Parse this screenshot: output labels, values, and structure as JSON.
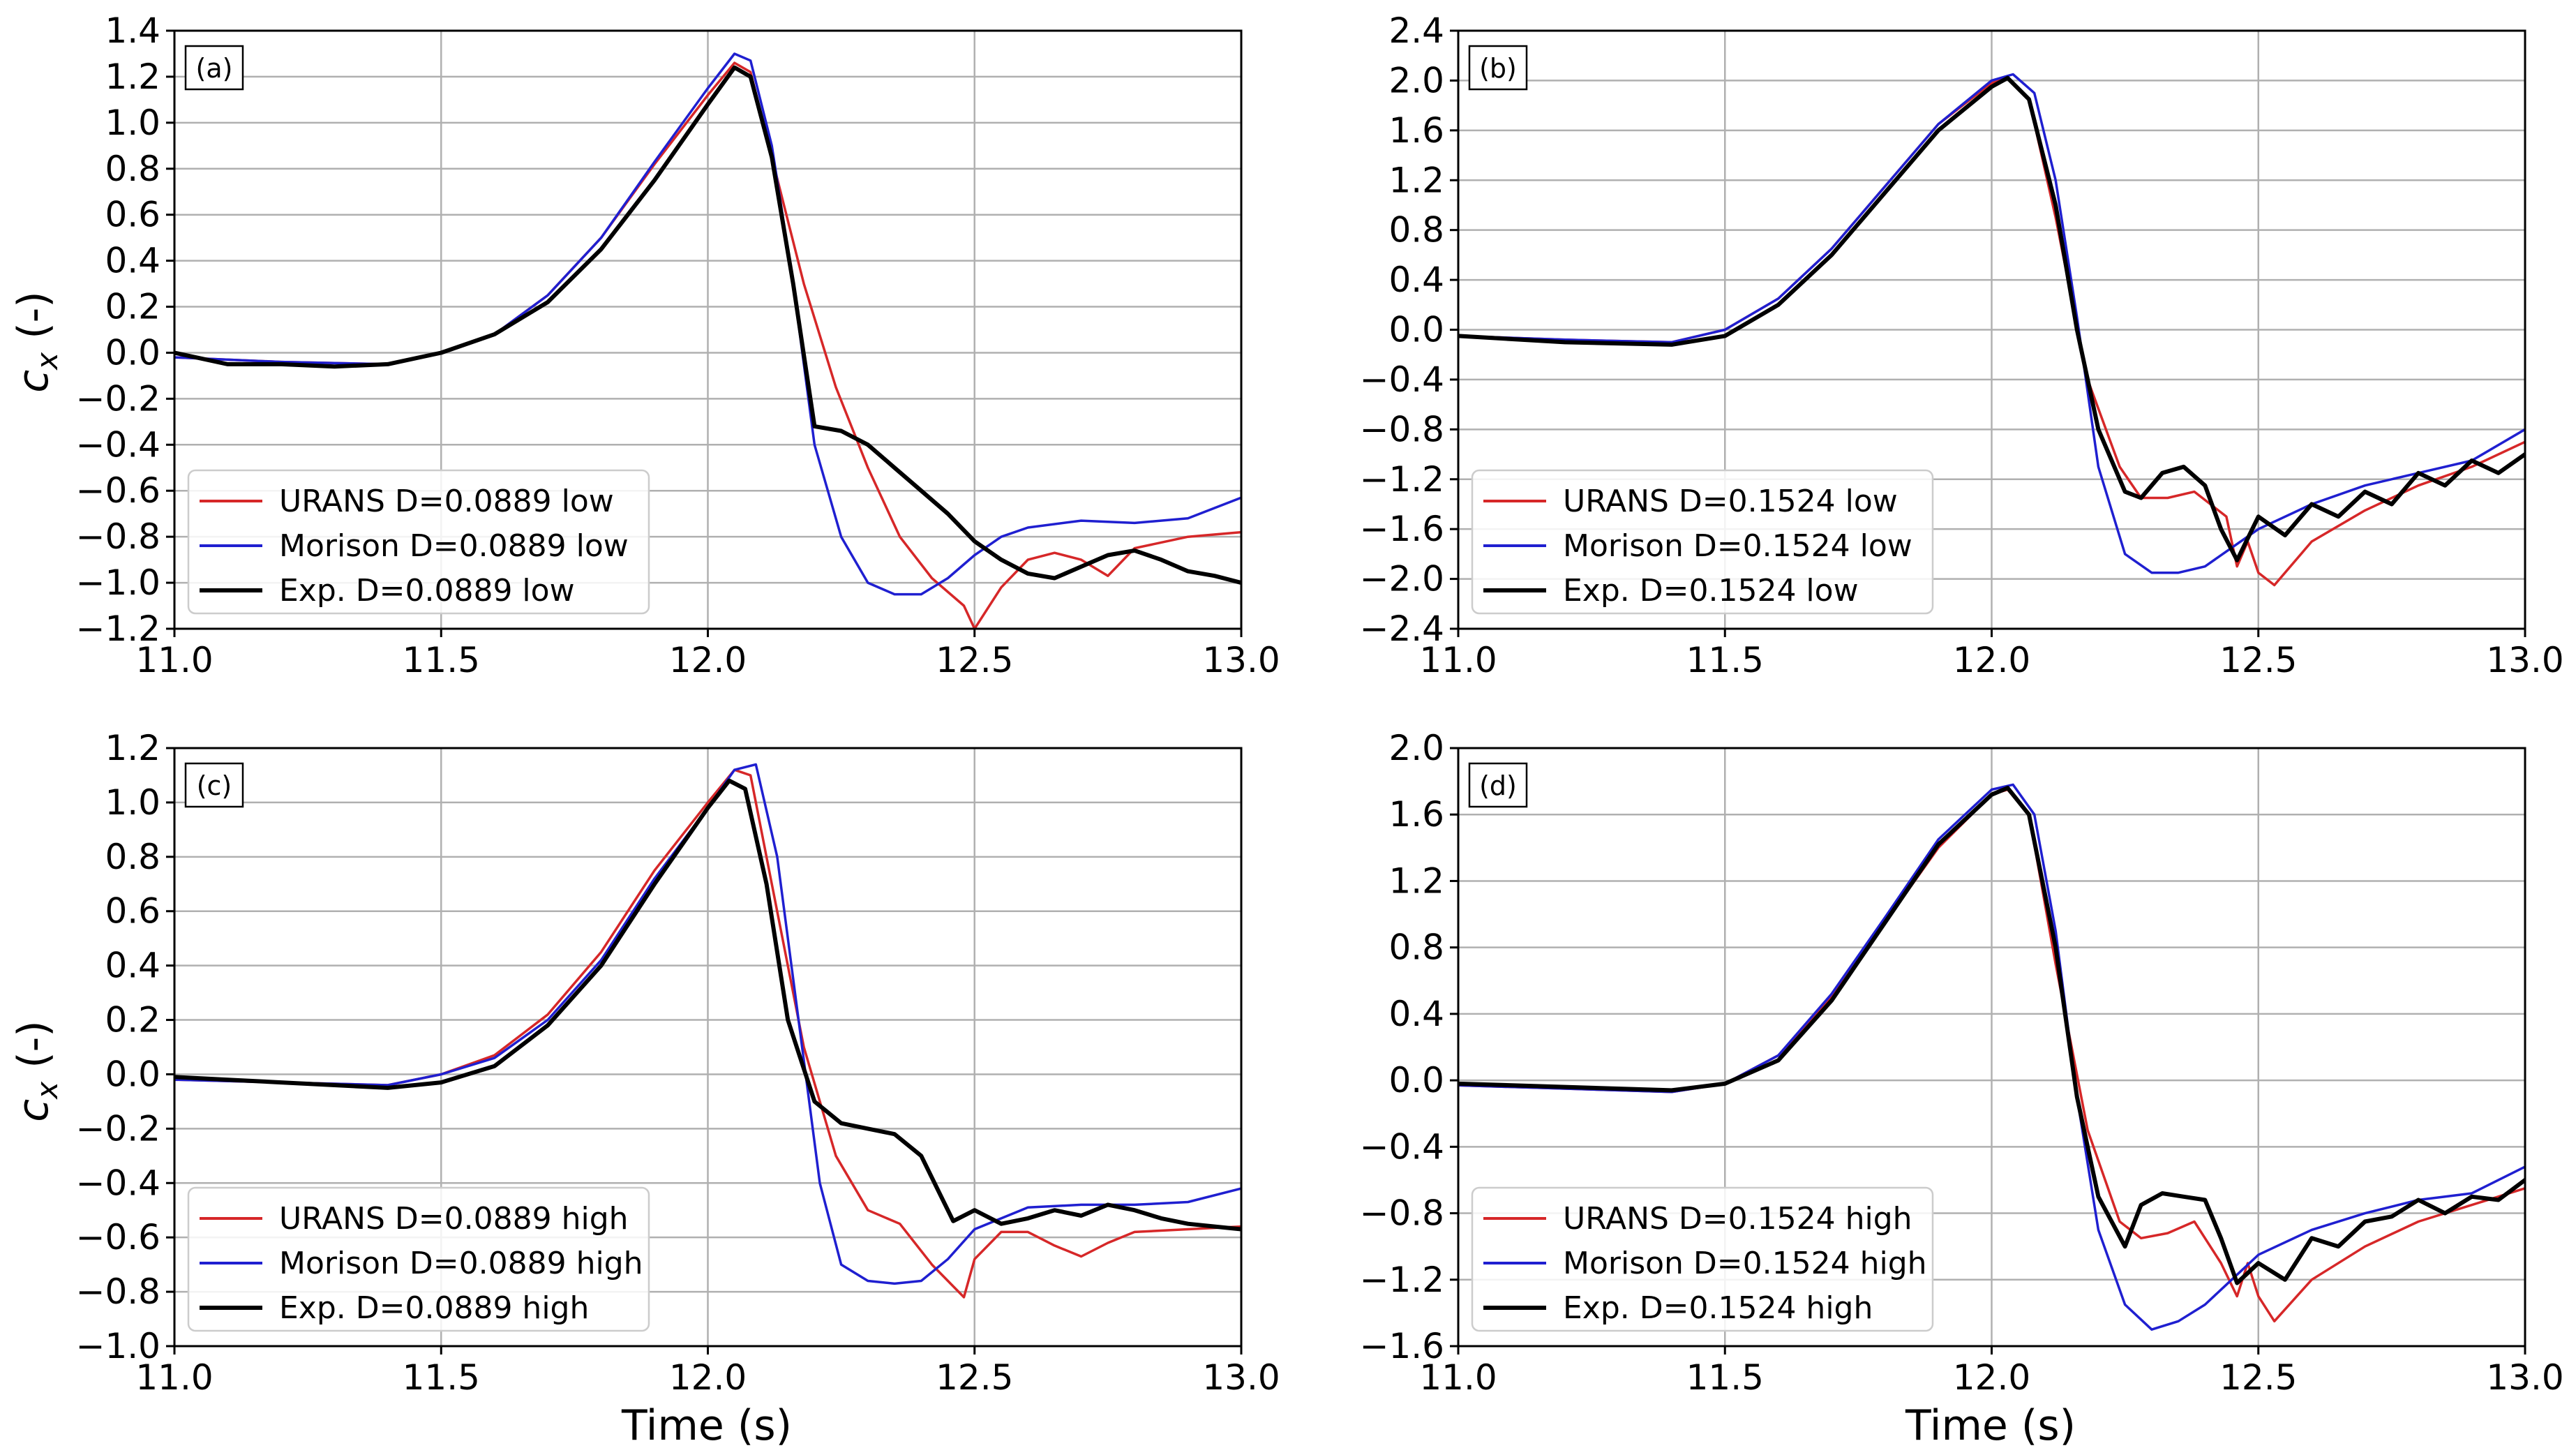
{
  "colors": {
    "urans": "#d62728",
    "morison": "#1f1fd0",
    "exp": "#000000"
  },
  "x_axis_title": "Time (s)",
  "y_axis_title_base": "c",
  "y_axis_title_sub": "x",
  "y_axis_title_unit": "(-)",
  "chart_data": [
    {
      "type": "line",
      "panel_label": "(a)",
      "xlim": [
        11.0,
        13.0
      ],
      "ylim": [
        -1.2,
        1.4
      ],
      "xticks": [
        "11.0",
        "11.5",
        "12.0",
        "12.5",
        "13.0"
      ],
      "yticks": [
        "1.4",
        "1.2",
        "1.0",
        "0.8",
        "0.6",
        "0.4",
        "0.2",
        "0.0",
        "−0.2",
        "−0.4",
        "−0.6",
        "−0.8",
        "−1.0",
        "−1.2"
      ],
      "ytick_values": [
        1.4,
        1.2,
        1.0,
        0.8,
        0.6,
        0.4,
        0.2,
        0.0,
        -0.2,
        -0.4,
        -0.6,
        -0.8,
        -1.0,
        -1.2
      ],
      "xtick_values": [
        11.0,
        11.5,
        12.0,
        12.5,
        13.0
      ],
      "legend_position": "lower-left",
      "series": [
        {
          "name": "URANS D=0.0889 low",
          "color": "#d62728",
          "x": [
            11.0,
            11.2,
            11.4,
            11.5,
            11.6,
            11.7,
            11.8,
            11.9,
            12.0,
            12.05,
            12.08,
            12.12,
            12.18,
            12.24,
            12.3,
            12.36,
            12.42,
            12.48,
            12.5,
            12.55,
            12.6,
            12.65,
            12.7,
            12.75,
            12.8,
            12.9,
            13.0
          ],
          "y": [
            -0.02,
            -0.04,
            -0.05,
            0.0,
            0.08,
            0.25,
            0.5,
            0.82,
            1.12,
            1.26,
            1.22,
            0.85,
            0.3,
            -0.15,
            -0.5,
            -0.8,
            -0.98,
            -1.1,
            -1.2,
            -1.02,
            -0.9,
            -0.87,
            -0.9,
            -0.97,
            -0.85,
            -0.8,
            -0.78
          ]
        },
        {
          "name": "Morison D=0.0889 low",
          "color": "#1f1fd0",
          "x": [
            11.0,
            11.2,
            11.4,
            11.5,
            11.6,
            11.7,
            11.8,
            11.9,
            12.0,
            12.05,
            12.08,
            12.12,
            12.16,
            12.2,
            12.25,
            12.3,
            12.35,
            12.4,
            12.45,
            12.5,
            12.55,
            12.6,
            12.7,
            12.8,
            12.9,
            13.0
          ],
          "y": [
            -0.02,
            -0.04,
            -0.05,
            0.0,
            0.08,
            0.25,
            0.5,
            0.83,
            1.15,
            1.3,
            1.27,
            0.9,
            0.3,
            -0.4,
            -0.8,
            -1.0,
            -1.05,
            -1.05,
            -0.98,
            -0.88,
            -0.8,
            -0.76,
            -0.73,
            -0.74,
            -0.72,
            -0.63
          ]
        },
        {
          "name": "Exp. D=0.0889 low",
          "color": "#000000",
          "x": [
            11.0,
            11.1,
            11.2,
            11.3,
            11.4,
            11.5,
            11.6,
            11.7,
            11.8,
            11.9,
            12.0,
            12.05,
            12.08,
            12.12,
            12.16,
            12.2,
            12.25,
            12.3,
            12.35,
            12.4,
            12.45,
            12.5,
            12.55,
            12.6,
            12.65,
            12.7,
            12.75,
            12.8,
            12.85,
            12.9,
            12.95,
            13.0
          ],
          "y": [
            0.0,
            -0.05,
            -0.05,
            -0.06,
            -0.05,
            0.0,
            0.08,
            0.22,
            0.45,
            0.75,
            1.08,
            1.24,
            1.2,
            0.85,
            0.3,
            -0.32,
            -0.34,
            -0.4,
            -0.5,
            -0.6,
            -0.7,
            -0.82,
            -0.9,
            -0.96,
            -0.98,
            -0.93,
            -0.88,
            -0.86,
            -0.9,
            -0.95,
            -0.97,
            -1.0
          ]
        }
      ]
    },
    {
      "type": "line",
      "panel_label": "(b)",
      "xlim": [
        11.0,
        13.0
      ],
      "ylim": [
        -2.4,
        2.4
      ],
      "xticks": [
        "11.0",
        "11.5",
        "12.0",
        "12.5",
        "13.0"
      ],
      "yticks": [
        "2.4",
        "2.0",
        "1.6",
        "1.2",
        "0.8",
        "0.4",
        "0.0",
        "−0.4",
        "−0.8",
        "−1.2",
        "−1.6",
        "−2.0",
        "−2.4"
      ],
      "ytick_values": [
        2.4,
        2.0,
        1.6,
        1.2,
        0.8,
        0.4,
        0.0,
        -0.4,
        -0.8,
        -1.2,
        -1.6,
        -2.0,
        -2.4
      ],
      "xtick_values": [
        11.0,
        11.5,
        12.0,
        12.5,
        13.0
      ],
      "legend_position": "lower-left",
      "series": [
        {
          "name": "URANS D=0.1524 low",
          "color": "#d62728",
          "x": [
            11.0,
            11.2,
            11.4,
            11.5,
            11.6,
            11.7,
            11.8,
            11.9,
            12.0,
            12.03,
            12.07,
            12.12,
            12.18,
            12.24,
            12.28,
            12.33,
            12.38,
            12.44,
            12.46,
            12.48,
            12.5,
            12.53,
            12.6,
            12.7,
            12.8,
            12.9,
            13.0
          ],
          "y": [
            -0.05,
            -0.08,
            -0.1,
            0.0,
            0.25,
            0.65,
            1.15,
            1.65,
            1.98,
            2.02,
            1.85,
            0.9,
            -0.4,
            -1.1,
            -1.35,
            -1.35,
            -1.3,
            -1.5,
            -1.9,
            -1.7,
            -1.95,
            -2.05,
            -1.7,
            -1.45,
            -1.25,
            -1.1,
            -0.9
          ]
        },
        {
          "name": "Morison D=0.1524 low",
          "color": "#1f1fd0",
          "x": [
            11.0,
            11.2,
            11.4,
            11.5,
            11.6,
            11.7,
            11.8,
            11.9,
            12.0,
            12.04,
            12.08,
            12.12,
            12.16,
            12.2,
            12.25,
            12.3,
            12.35,
            12.4,
            12.45,
            12.5,
            12.6,
            12.7,
            12.8,
            12.9,
            13.0
          ],
          "y": [
            -0.05,
            -0.08,
            -0.1,
            0.0,
            0.25,
            0.65,
            1.15,
            1.65,
            2.0,
            2.05,
            1.9,
            1.2,
            0.1,
            -1.1,
            -1.8,
            -1.95,
            -1.95,
            -1.9,
            -1.75,
            -1.6,
            -1.4,
            -1.25,
            -1.15,
            -1.05,
            -0.8
          ]
        },
        {
          "name": "Exp. D=0.1524 low",
          "color": "#000000",
          "x": [
            11.0,
            11.2,
            11.4,
            11.5,
            11.6,
            11.7,
            11.8,
            11.9,
            12.0,
            12.03,
            12.07,
            12.12,
            12.16,
            12.2,
            12.25,
            12.28,
            12.32,
            12.36,
            12.4,
            12.43,
            12.46,
            12.5,
            12.55,
            12.6,
            12.65,
            12.7,
            12.75,
            12.8,
            12.85,
            12.9,
            12.95,
            13.0
          ],
          "y": [
            -0.05,
            -0.1,
            -0.12,
            -0.05,
            0.2,
            0.6,
            1.1,
            1.6,
            1.95,
            2.02,
            1.85,
            1.0,
            0.0,
            -0.8,
            -1.3,
            -1.35,
            -1.15,
            -1.1,
            -1.25,
            -1.6,
            -1.85,
            -1.5,
            -1.65,
            -1.4,
            -1.5,
            -1.3,
            -1.4,
            -1.15,
            -1.25,
            -1.05,
            -1.15,
            -1.0
          ]
        }
      ]
    },
    {
      "type": "line",
      "panel_label": "(c)",
      "xlim": [
        11.0,
        13.0
      ],
      "ylim": [
        -1.0,
        1.2
      ],
      "xticks": [
        "11.0",
        "11.5",
        "12.0",
        "12.5",
        "13.0"
      ],
      "yticks": [
        "1.2",
        "1.0",
        "0.8",
        "0.6",
        "0.4",
        "0.2",
        "0.0",
        "−0.2",
        "−0.4",
        "−0.6",
        "−0.8",
        "−1.0"
      ],
      "ytick_values": [
        1.2,
        1.0,
        0.8,
        0.6,
        0.4,
        0.2,
        0.0,
        -0.2,
        -0.4,
        -0.6,
        -0.8,
        -1.0
      ],
      "xtick_values": [
        11.0,
        11.5,
        12.0,
        12.5,
        13.0
      ],
      "legend_position": "lower-left",
      "series": [
        {
          "name": "URANS D=0.0889 high",
          "color": "#d62728",
          "x": [
            11.0,
            11.2,
            11.4,
            11.5,
            11.6,
            11.7,
            11.8,
            11.9,
            12.0,
            12.05,
            12.08,
            12.12,
            12.18,
            12.24,
            12.3,
            12.36,
            12.42,
            12.48,
            12.5,
            12.55,
            12.6,
            12.65,
            12.7,
            12.75,
            12.8,
            12.9,
            13.0
          ],
          "y": [
            -0.02,
            -0.03,
            -0.04,
            0.0,
            0.07,
            0.22,
            0.45,
            0.75,
            1.0,
            1.12,
            1.1,
            0.7,
            0.1,
            -0.3,
            -0.5,
            -0.55,
            -0.7,
            -0.82,
            -0.68,
            -0.58,
            -0.58,
            -0.63,
            -0.67,
            -0.62,
            -0.58,
            -0.57,
            -0.56
          ]
        },
        {
          "name": "Morison D=0.0889 high",
          "color": "#1f1fd0",
          "x": [
            11.0,
            11.2,
            11.4,
            11.5,
            11.6,
            11.7,
            11.8,
            11.9,
            12.0,
            12.05,
            12.09,
            12.13,
            12.17,
            12.21,
            12.25,
            12.3,
            12.35,
            12.4,
            12.45,
            12.5,
            12.6,
            12.7,
            12.8,
            12.9,
            13.0
          ],
          "y": [
            -0.02,
            -0.03,
            -0.04,
            0.0,
            0.06,
            0.2,
            0.42,
            0.72,
            0.98,
            1.12,
            1.14,
            0.8,
            0.2,
            -0.4,
            -0.7,
            -0.76,
            -0.77,
            -0.76,
            -0.68,
            -0.57,
            -0.49,
            -0.48,
            -0.48,
            -0.47,
            -0.42
          ]
        },
        {
          "name": "Exp. D=0.0889 high",
          "color": "#000000",
          "x": [
            11.0,
            11.1,
            11.2,
            11.3,
            11.4,
            11.5,
            11.6,
            11.7,
            11.8,
            11.9,
            12.0,
            12.04,
            12.07,
            12.11,
            12.15,
            12.2,
            12.25,
            12.3,
            12.35,
            12.4,
            12.43,
            12.46,
            12.5,
            12.55,
            12.6,
            12.65,
            12.7,
            12.75,
            12.8,
            12.85,
            12.9,
            12.95,
            13.0
          ],
          "y": [
            -0.01,
            -0.02,
            -0.03,
            -0.04,
            -0.05,
            -0.03,
            0.03,
            0.18,
            0.4,
            0.7,
            0.98,
            1.08,
            1.05,
            0.7,
            0.2,
            -0.1,
            -0.18,
            -0.2,
            -0.22,
            -0.3,
            -0.42,
            -0.54,
            -0.5,
            -0.55,
            -0.53,
            -0.5,
            -0.52,
            -0.48,
            -0.5,
            -0.53,
            -0.55,
            -0.56,
            -0.57
          ]
        }
      ]
    },
    {
      "type": "line",
      "panel_label": "(d)",
      "xlim": [
        11.0,
        13.0
      ],
      "ylim": [
        -1.6,
        2.0
      ],
      "xticks": [
        "11.0",
        "11.5",
        "12.0",
        "12.5",
        "13.0"
      ],
      "yticks": [
        "2.0",
        "1.6",
        "1.2",
        "0.8",
        "0.4",
        "0.0",
        "−0.4",
        "−0.8",
        "−1.2",
        "−1.6"
      ],
      "ytick_values": [
        2.0,
        1.6,
        1.2,
        0.8,
        0.4,
        0.0,
        -0.4,
        -0.8,
        -1.2,
        -1.6
      ],
      "xtick_values": [
        11.0,
        11.5,
        12.0,
        12.5,
        13.0
      ],
      "legend_position": "lower-left",
      "series": [
        {
          "name": "URANS D=0.1524 high",
          "color": "#d62728",
          "x": [
            11.0,
            11.2,
            11.4,
            11.5,
            11.6,
            11.7,
            11.8,
            11.9,
            12.0,
            12.03,
            12.07,
            12.12,
            12.18,
            12.24,
            12.28,
            12.33,
            12.38,
            12.43,
            12.46,
            12.48,
            12.5,
            12.53,
            12.6,
            12.7,
            12.8,
            12.9,
            13.0
          ],
          "y": [
            -0.03,
            -0.05,
            -0.07,
            -0.02,
            0.15,
            0.5,
            0.95,
            1.4,
            1.72,
            1.75,
            1.6,
            0.7,
            -0.3,
            -0.85,
            -0.95,
            -0.92,
            -0.85,
            -1.1,
            -1.3,
            -1.1,
            -1.3,
            -1.45,
            -1.2,
            -1.0,
            -0.85,
            -0.75,
            -0.65
          ]
        },
        {
          "name": "Morison D=0.1524 high",
          "color": "#1f1fd0",
          "x": [
            11.0,
            11.2,
            11.4,
            11.5,
            11.6,
            11.7,
            11.8,
            11.9,
            12.0,
            12.04,
            12.08,
            12.12,
            12.16,
            12.2,
            12.25,
            12.3,
            12.35,
            12.4,
            12.45,
            12.5,
            12.6,
            12.7,
            12.8,
            12.9,
            13.0
          ],
          "y": [
            -0.03,
            -0.05,
            -0.07,
            -0.02,
            0.15,
            0.52,
            0.98,
            1.45,
            1.75,
            1.78,
            1.6,
            0.9,
            -0.1,
            -0.9,
            -1.35,
            -1.5,
            -1.45,
            -1.35,
            -1.2,
            -1.05,
            -0.9,
            -0.8,
            -0.72,
            -0.68,
            -0.52
          ]
        },
        {
          "name": "Exp. D=0.1524 high",
          "color": "#000000",
          "x": [
            11.0,
            11.2,
            11.4,
            11.5,
            11.6,
            11.7,
            11.8,
            11.9,
            12.0,
            12.03,
            12.07,
            12.12,
            12.16,
            12.2,
            12.25,
            12.28,
            12.32,
            12.36,
            12.4,
            12.43,
            12.46,
            12.5,
            12.55,
            12.6,
            12.65,
            12.7,
            12.75,
            12.8,
            12.85,
            12.9,
            12.95,
            13.0
          ],
          "y": [
            -0.02,
            -0.04,
            -0.06,
            -0.02,
            0.12,
            0.48,
            0.95,
            1.42,
            1.72,
            1.76,
            1.6,
            0.8,
            -0.1,
            -0.7,
            -1.0,
            -0.75,
            -0.68,
            -0.7,
            -0.72,
            -0.95,
            -1.22,
            -1.1,
            -1.2,
            -0.95,
            -1.0,
            -0.85,
            -0.82,
            -0.72,
            -0.8,
            -0.7,
            -0.72,
            -0.6
          ]
        }
      ]
    }
  ]
}
